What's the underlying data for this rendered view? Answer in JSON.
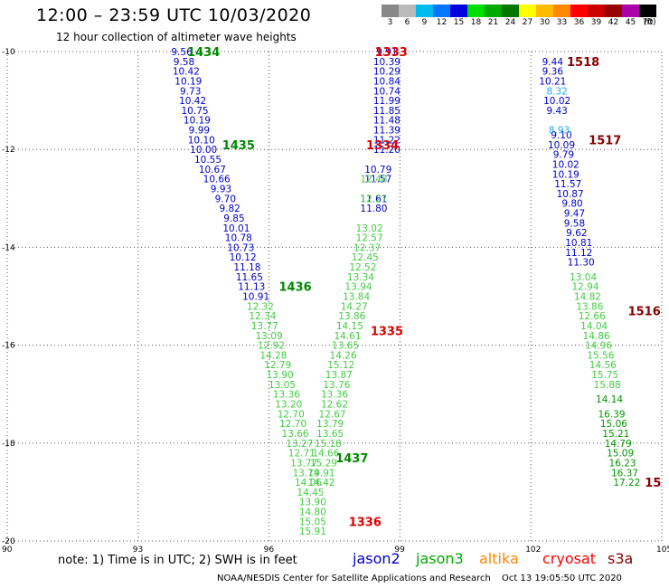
{
  "header": {
    "title": "12:00 – 23:59 UTC 10/03/2020",
    "subtitle": "12 hour collection of altimeter wave heights"
  },
  "colorbar": {
    "labels": [
      "3",
      "6",
      "9",
      "12",
      "15",
      "18",
      "21",
      "24",
      "27",
      "30",
      "33",
      "36",
      "39",
      "42",
      "45",
      "70"
    ],
    "units": "(ft)",
    "colors": [
      "#888888",
      "#bbbbbb",
      "#00bbee",
      "#0077ff",
      "#0000dd",
      "#00dd00",
      "#00aa00",
      "#007700",
      "#ffff00",
      "#ffbb00",
      "#ff8800",
      "#ff0000",
      "#cc0000",
      "#990000",
      "#aa00aa",
      "#000000"
    ]
  },
  "footer": {
    "note": "note: 1) Time is in UTC; 2) SWH is in feet",
    "credit": "NOAA/NESDIS Center for Satellite Applications and Research",
    "timestamp": "Oct 13 19:05:50 UTC 2020"
  },
  "legend": [
    {
      "name": "jason2",
      "color": "#0000cc"
    },
    {
      "name": "jason3",
      "color": "#00aa00"
    },
    {
      "name": "altika",
      "color": "#ff8800"
    },
    {
      "name": "cryosat",
      "color": "#ff0000"
    },
    {
      "name": "s3a",
      "color": "#880000"
    }
  ],
  "chart_data": {
    "type": "scatter",
    "xlim": [
      90,
      105
    ],
    "ylim": [
      -20,
      -10
    ],
    "xticks": [
      "90",
      "93",
      "96",
      "99",
      "102",
      "105"
    ],
    "yticks": [
      "-10",
      "-12",
      "-14",
      "-16",
      "-18",
      "-20"
    ],
    "grid": true,
    "tracks": [
      {
        "name": "1434",
        "color": "#008800",
        "x": 94.5,
        "y": -10.0
      },
      {
        "name": "1435",
        "color": "#008800",
        "x": 95.3,
        "y": -11.9
      },
      {
        "name": "1436",
        "color": "#008800",
        "x": 96.6,
        "y": -14.8
      },
      {
        "name": "1437",
        "color": "#008800",
        "x": 97.9,
        "y": -18.3
      },
      {
        "name": "1333",
        "color": "#dd0000",
        "x": 98.8,
        "y": -10.0
      },
      {
        "name": "1334",
        "color": "#dd0000",
        "x": 98.6,
        "y": -11.9
      },
      {
        "name": "1335",
        "color": "#dd0000",
        "x": 98.7,
        "y": -15.7
      },
      {
        "name": "1336",
        "color": "#dd0000",
        "x": 98.2,
        "y": -19.6
      },
      {
        "name": "1518",
        "color": "#880000",
        "x": 103.2,
        "y": -10.2
      },
      {
        "name": "1517",
        "color": "#880000",
        "x": 103.7,
        "y": -11.8
      },
      {
        "name": "1516",
        "color": "#880000",
        "x": 104.6,
        "y": -15.3
      },
      {
        "name": "15",
        "color": "#880000",
        "x": 104.8,
        "y": -18.8
      }
    ],
    "series": [
      {
        "name": "jason2",
        "color": "#0000cc",
        "points": [
          [
            94.0,
            -10.0,
            "9.56"
          ],
          [
            94.05,
            -10.2,
            "9.58"
          ],
          [
            94.1,
            -10.4,
            "10.42"
          ],
          [
            94.15,
            -10.6,
            "10.19"
          ],
          [
            94.2,
            -10.8,
            "9.73"
          ],
          [
            94.25,
            -11.0,
            "10.42"
          ],
          [
            94.3,
            -11.2,
            "10.75"
          ],
          [
            94.35,
            -11.4,
            "10.19"
          ],
          [
            94.4,
            -11.6,
            "9.99"
          ],
          [
            94.45,
            -11.8,
            "10.10"
          ],
          [
            94.5,
            -12.0,
            "10.00"
          ],
          [
            94.6,
            -12.2,
            "10.55"
          ],
          [
            94.7,
            -12.4,
            "10.67"
          ],
          [
            94.8,
            -12.6,
            "10.66"
          ],
          [
            94.9,
            -12.8,
            "9.93"
          ],
          [
            95.0,
            -13.0,
            "9.70"
          ],
          [
            95.1,
            -13.2,
            "9.82"
          ],
          [
            95.2,
            -13.4,
            "9.85"
          ],
          [
            95.25,
            -13.6,
            "10.01"
          ],
          [
            95.3,
            -13.8,
            "10.78"
          ],
          [
            95.35,
            -14.0,
            "10.73"
          ],
          [
            95.4,
            -14.2,
            "10.12"
          ],
          [
            95.5,
            -14.4,
            "11.18"
          ],
          [
            95.55,
            -14.6,
            "11.65"
          ],
          [
            95.6,
            -14.8,
            "11.13"
          ],
          [
            95.7,
            -15.0,
            "10.91"
          ],
          [
            98.7,
            -10.0,
            "9.91"
          ],
          [
            98.7,
            -10.2,
            "10.39"
          ],
          [
            98.7,
            -10.4,
            "10.29"
          ],
          [
            98.7,
            -10.6,
            "10.84"
          ],
          [
            98.7,
            -10.8,
            "10.74"
          ],
          [
            98.7,
            -11.0,
            "11.99"
          ],
          [
            98.7,
            -11.2,
            "11.85"
          ],
          [
            98.7,
            -11.4,
            "11.48"
          ],
          [
            98.7,
            -11.6,
            "11.39"
          ],
          [
            98.7,
            -11.8,
            "11.22"
          ],
          [
            98.7,
            -12.0,
            "11.20"
          ],
          [
            98.5,
            -12.4,
            "10.79"
          ],
          [
            98.5,
            -12.6,
            "11.57"
          ],
          [
            98.4,
            -13.0,
            "11.61"
          ],
          [
            98.4,
            -13.2,
            "11.80"
          ],
          [
            102.5,
            -10.2,
            "9.44"
          ],
          [
            102.5,
            -10.4,
            "9.36"
          ],
          [
            102.5,
            -10.6,
            "10.21"
          ],
          [
            102.6,
            -11.0,
            "10.02"
          ],
          [
            102.6,
            -11.2,
            "9.43"
          ],
          [
            102.7,
            -11.7,
            "9.10"
          ],
          [
            102.7,
            -11.9,
            "10.09"
          ],
          [
            102.75,
            -12.1,
            "9.79"
          ],
          [
            102.8,
            -12.3,
            "10.02"
          ],
          [
            102.8,
            -12.5,
            "10.19"
          ],
          [
            102.85,
            -12.7,
            "11.57"
          ],
          [
            102.9,
            -12.9,
            "10.87"
          ],
          [
            102.95,
            -13.1,
            "9.80"
          ],
          [
            103.0,
            -13.3,
            "9.47"
          ],
          [
            103.0,
            -13.5,
            "9.58"
          ],
          [
            103.05,
            -13.7,
            "9.62"
          ],
          [
            103.1,
            -13.9,
            "10.81"
          ],
          [
            103.1,
            -14.1,
            "11.12"
          ],
          [
            103.15,
            -14.3,
            "11.30"
          ]
        ]
      },
      {
        "name": "jason2-light",
        "color": "#22aaee",
        "points": [
          [
            102.6,
            -10.8,
            "8.32"
          ],
          [
            102.65,
            -11.6,
            "8.93"
          ]
        ]
      },
      {
        "name": "jason3",
        "color": "#44cc44",
        "points": [
          [
            95.8,
            -15.2,
            "12.32"
          ],
          [
            95.85,
            -15.4,
            "12.34"
          ],
          [
            95.9,
            -15.6,
            "13.77"
          ],
          [
            96.0,
            -15.8,
            "13.09"
          ],
          [
            96.05,
            -16.0,
            "12.92"
          ],
          [
            96.1,
            -16.2,
            "14.28"
          ],
          [
            96.2,
            -16.4,
            "12.79"
          ],
          [
            96.25,
            -16.6,
            "13.90"
          ],
          [
            96.3,
            -16.8,
            "13.05"
          ],
          [
            96.4,
            -17.0,
            "13.36"
          ],
          [
            96.45,
            -17.2,
            "13.20"
          ],
          [
            96.5,
            -17.4,
            "12.70"
          ],
          [
            96.55,
            -17.6,
            "12.70"
          ],
          [
            96.6,
            -17.8,
            "13.66"
          ],
          [
            96.7,
            -18.0,
            "13.27"
          ],
          [
            96.75,
            -18.2,
            "12.71"
          ],
          [
            96.8,
            -18.4,
            "13.77"
          ],
          [
            96.85,
            -18.6,
            "13.79"
          ],
          [
            96.9,
            -18.8,
            "14.06"
          ],
          [
            96.95,
            -19.0,
            "14.45"
          ],
          [
            97.0,
            -19.2,
            "13.90"
          ],
          [
            97.0,
            -19.4,
            "14.80"
          ],
          [
            97.0,
            -19.6,
            "15.05"
          ],
          [
            97.0,
            -19.8,
            "15.91"
          ],
          [
            98.4,
            -12.6,
            "12.48"
          ],
          [
            98.4,
            -13.0,
            "12.27"
          ],
          [
            98.3,
            -13.6,
            "13.02"
          ],
          [
            98.3,
            -13.8,
            "12.57"
          ],
          [
            98.25,
            -14.0,
            "12.37"
          ],
          [
            98.2,
            -14.2,
            "12.45"
          ],
          [
            98.15,
            -14.4,
            "12.52"
          ],
          [
            98.1,
            -14.6,
            "13.34"
          ],
          [
            98.05,
            -14.8,
            "13.94"
          ],
          [
            98.0,
            -15.0,
            "13.84"
          ],
          [
            97.95,
            -15.2,
            "14.27"
          ],
          [
            97.9,
            -15.4,
            "13.86"
          ],
          [
            97.85,
            -15.6,
            "14.15"
          ],
          [
            97.8,
            -15.8,
            "14.61"
          ],
          [
            97.75,
            -16.0,
            "13.65"
          ],
          [
            97.7,
            -16.2,
            "14.26"
          ],
          [
            97.65,
            -16.4,
            "15.12"
          ],
          [
            97.6,
            -16.6,
            "13.87"
          ],
          [
            97.55,
            -16.8,
            "13.76"
          ],
          [
            97.5,
            -17.0,
            "13.36"
          ],
          [
            97.5,
            -17.2,
            "12.62"
          ],
          [
            97.45,
            -17.4,
            "12.67"
          ],
          [
            97.4,
            -17.6,
            "13.79"
          ],
          [
            97.4,
            -17.8,
            "13.65"
          ],
          [
            97.35,
            -18.0,
            "15.18"
          ],
          [
            97.3,
            -18.2,
            "14.66"
          ],
          [
            97.25,
            -18.4,
            "15.29"
          ],
          [
            97.2,
            -18.6,
            "14.91"
          ],
          [
            97.2,
            -18.8,
            "14.42"
          ],
          [
            103.2,
            -14.6,
            "13.04"
          ],
          [
            103.25,
            -14.8,
            "12.94"
          ],
          [
            103.3,
            -15.0,
            "14.82"
          ],
          [
            103.35,
            -15.2,
            "13.86"
          ],
          [
            103.4,
            -15.4,
            "12.66"
          ],
          [
            103.45,
            -15.6,
            "14.04"
          ],
          [
            103.5,
            -15.8,
            "14.86"
          ],
          [
            103.55,
            -16.0,
            "14.96"
          ],
          [
            103.6,
            -16.2,
            "15.56"
          ],
          [
            103.65,
            -16.4,
            "14.56"
          ],
          [
            103.7,
            -16.6,
            "15.75"
          ],
          [
            103.75,
            -16.8,
            "15.88"
          ]
        ]
      },
      {
        "name": "jason3-dark",
        "color": "#009900",
        "points": [
          [
            103.8,
            -17.1,
            "14.14"
          ],
          [
            103.85,
            -17.4,
            "16.39"
          ],
          [
            103.9,
            -17.6,
            "15.06"
          ],
          [
            103.95,
            -17.8,
            "15.21"
          ],
          [
            104.0,
            -18.0,
            "14.79"
          ],
          [
            104.05,
            -18.2,
            "15.09"
          ],
          [
            104.1,
            -18.4,
            "16.23"
          ],
          [
            104.15,
            -18.6,
            "16.37"
          ],
          [
            104.2,
            -18.8,
            "17.22"
          ]
        ]
      }
    ]
  }
}
